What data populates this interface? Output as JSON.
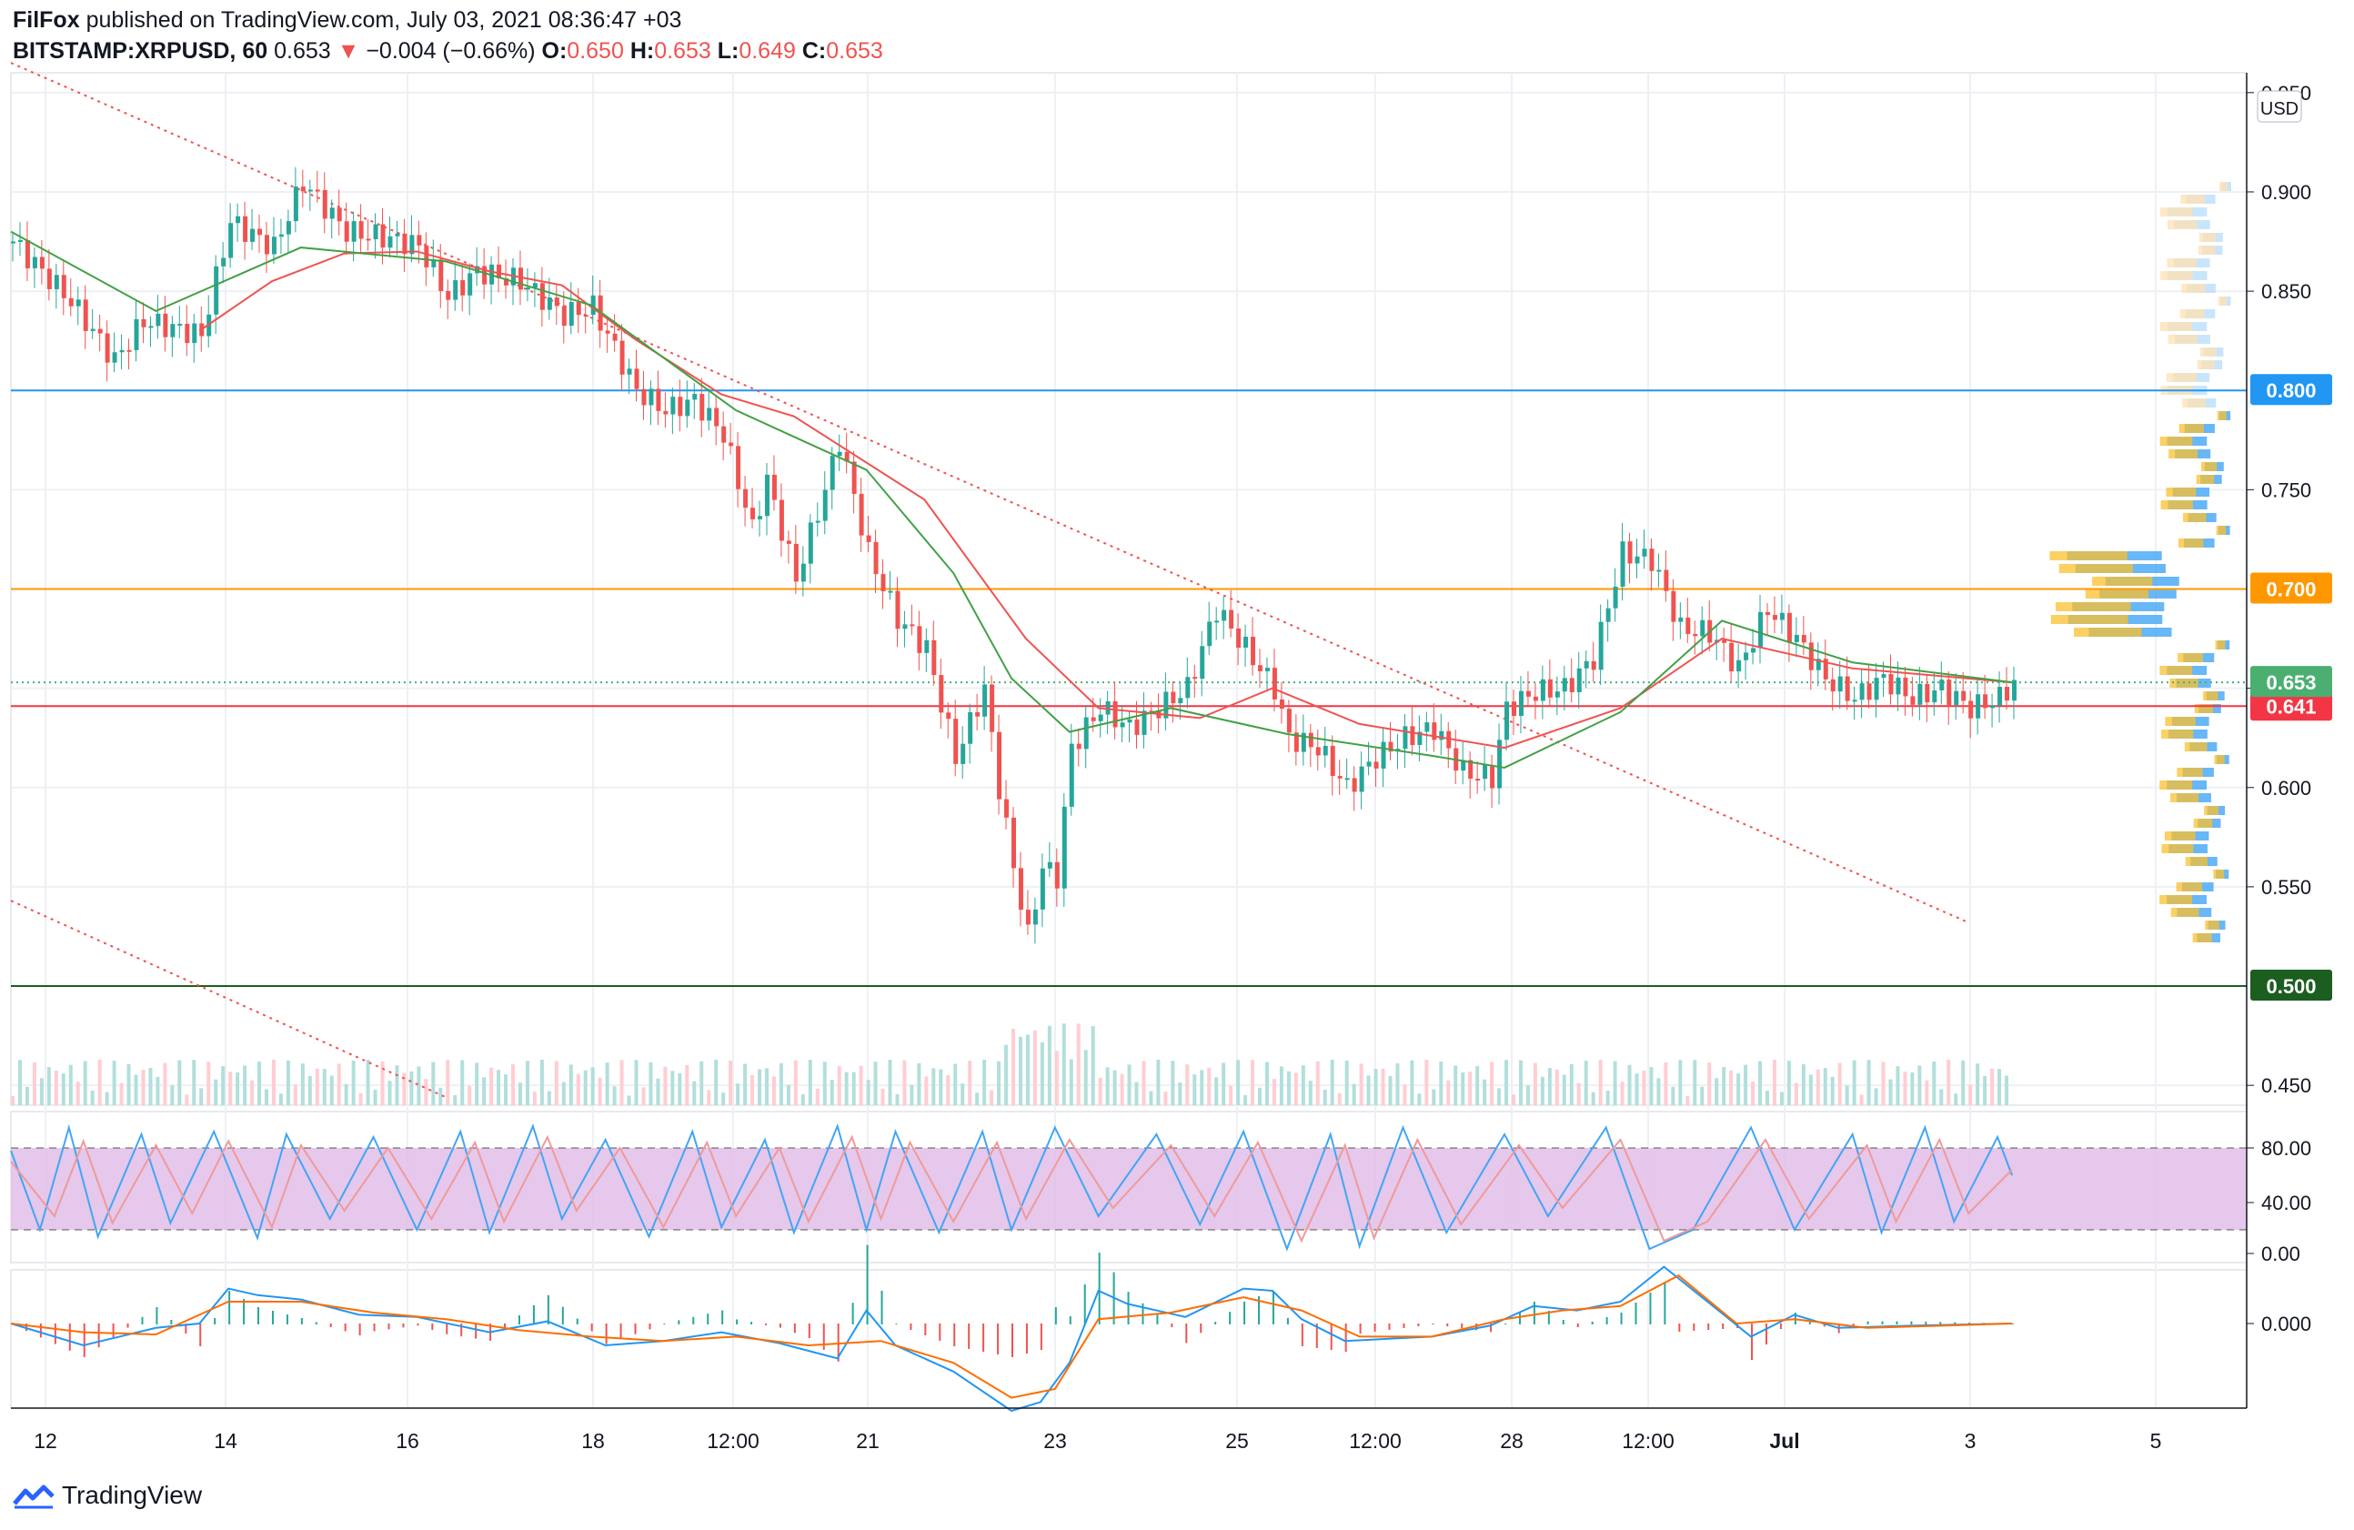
{
  "header": {
    "publisher": "FilFox",
    "published_text": "published on TradingView.com, July 03, 2021 08:36:47 +03",
    "symbol": "BITSTAMP:XRPUSD, 60",
    "last": "0.653",
    "change": "−0.004 (−0.66%)",
    "o_label": "O:",
    "o": "0.650",
    "h_label": "H:",
    "h": "0.653",
    "l_label": "L:",
    "l": "0.649",
    "c_label": "C:",
    "c": "0.653"
  },
  "footer": {
    "brand": "TradingView"
  },
  "chart_data": [
    {
      "type": "candlestick",
      "currency": "USD",
      "x_ticks": [
        "12",
        "14",
        "16",
        "18",
        "12:00",
        "21",
        "23",
        "25",
        "12:00",
        "28",
        "12:00",
        "Jul",
        "3",
        "5"
      ],
      "y_ticks": [
        "0.450",
        "0.550",
        "0.600",
        "0.650",
        "0.750",
        "0.850",
        "0.900",
        "0.950"
      ],
      "ylim": [
        0.44,
        0.96
      ],
      "grid": true,
      "price_close_path": [
        [
          0,
          0.875
        ],
        [
          8,
          0.845
        ],
        [
          14,
          0.815
        ],
        [
          18,
          0.835
        ],
        [
          26,
          0.828
        ],
        [
          30,
          0.885
        ],
        [
          36,
          0.872
        ],
        [
          40,
          0.905
        ],
        [
          46,
          0.88
        ],
        [
          50,
          0.878
        ],
        [
          56,
          0.873
        ],
        [
          60,
          0.847
        ],
        [
          64,
          0.86
        ],
        [
          70,
          0.855
        ],
        [
          76,
          0.838
        ],
        [
          80,
          0.842
        ],
        [
          86,
          0.8
        ],
        [
          90,
          0.79
        ],
        [
          94,
          0.795
        ],
        [
          98,
          0.778
        ],
        [
          102,
          0.73
        ],
        [
          104,
          0.755
        ],
        [
          108,
          0.705
        ],
        [
          112,
          0.75
        ],
        [
          114,
          0.775
        ],
        [
          118,
          0.718
        ],
        [
          122,
          0.685
        ],
        [
          126,
          0.67
        ],
        [
          130,
          0.615
        ],
        [
          134,
          0.65
        ],
        [
          136,
          0.6
        ],
        [
          138,
          0.56
        ],
        [
          140,
          0.525
        ],
        [
          142,
          0.56
        ],
        [
          144,
          0.555
        ],
        [
          146,
          0.62
        ],
        [
          150,
          0.64
        ],
        [
          154,
          0.63
        ],
        [
          158,
          0.64
        ],
        [
          162,
          0.65
        ],
        [
          166,
          0.69
        ],
        [
          170,
          0.67
        ],
        [
          174,
          0.65
        ],
        [
          176,
          0.625
        ],
        [
          180,
          0.62
        ],
        [
          184,
          0.6
        ],
        [
          188,
          0.615
        ],
        [
          192,
          0.625
        ],
        [
          196,
          0.63
        ],
        [
          200,
          0.608
        ],
        [
          204,
          0.605
        ],
        [
          206,
          0.64
        ],
        [
          210,
          0.648
        ],
        [
          214,
          0.65
        ],
        [
          218,
          0.665
        ],
        [
          222,
          0.718
        ],
        [
          226,
          0.715
        ],
        [
          230,
          0.68
        ],
        [
          234,
          0.678
        ],
        [
          238,
          0.66
        ],
        [
          242,
          0.69
        ],
        [
          246,
          0.675
        ],
        [
          250,
          0.655
        ],
        [
          254,
          0.645
        ],
        [
          258,
          0.655
        ],
        [
          262,
          0.645
        ],
        [
          266,
          0.65
        ],
        [
          270,
          0.64
        ],
        [
          274,
          0.645
        ],
        [
          276,
          0.653
        ]
      ],
      "ma_fast_path": [
        [
          0,
          0.88
        ],
        [
          20,
          0.84
        ],
        [
          40,
          0.872
        ],
        [
          60,
          0.865
        ],
        [
          80,
          0.843
        ],
        [
          100,
          0.79
        ],
        [
          118,
          0.76
        ],
        [
          130,
          0.708
        ],
        [
          138,
          0.655
        ],
        [
          146,
          0.628
        ],
        [
          160,
          0.64
        ],
        [
          176,
          0.627
        ],
        [
          196,
          0.616
        ],
        [
          206,
          0.61
        ],
        [
          222,
          0.638
        ],
        [
          236,
          0.684
        ],
        [
          254,
          0.663
        ],
        [
          276,
          0.653
        ]
      ],
      "ma_slow_path": [
        [
          26,
          0.83
        ],
        [
          36,
          0.855
        ],
        [
          46,
          0.869
        ],
        [
          56,
          0.87
        ],
        [
          66,
          0.86
        ],
        [
          76,
          0.853
        ],
        [
          86,
          0.826
        ],
        [
          98,
          0.798
        ],
        [
          108,
          0.787
        ],
        [
          126,
          0.745
        ],
        [
          140,
          0.675
        ],
        [
          150,
          0.64
        ],
        [
          164,
          0.635
        ],
        [
          174,
          0.65
        ],
        [
          186,
          0.632
        ],
        [
          206,
          0.62
        ],
        [
          222,
          0.64
        ],
        [
          236,
          0.675
        ],
        [
          254,
          0.66
        ],
        [
          276,
          0.653
        ]
      ],
      "trendlines": [
        [
          [
            0,
            0.965
          ],
          [
            270,
            0.532
          ]
        ],
        [
          [
            0,
            0.543
          ],
          [
            60,
            0.444
          ]
        ]
      ],
      "horizontal_levels": [
        {
          "value": 0.8,
          "label": "0.800",
          "color": "#2196f3"
        },
        {
          "value": 0.7,
          "label": "0.700",
          "color": "#ff9800"
        },
        {
          "value": 0.641,
          "label": "0.641",
          "color": "#f23645"
        },
        {
          "value": 0.5,
          "label": "0.500",
          "color": "#1b5e20"
        }
      ],
      "last_price": {
        "value": 0.653,
        "label": "0.653",
        "color": "#4caf72"
      }
    },
    {
      "type": "line",
      "name": "stochastic",
      "y_ticks": [
        "80.00",
        "40.00",
        "0.00"
      ],
      "band": [
        20,
        80
      ],
      "k_path": [
        [
          0,
          78
        ],
        [
          4,
          20
        ],
        [
          8,
          95
        ],
        [
          12,
          15
        ],
        [
          18,
          90
        ],
        [
          22,
          25
        ],
        [
          28,
          92
        ],
        [
          34,
          14
        ],
        [
          38,
          90
        ],
        [
          44,
          28
        ],
        [
          50,
          88
        ],
        [
          56,
          20
        ],
        [
          62,
          92
        ],
        [
          66,
          18
        ],
        [
          72,
          96
        ],
        [
          76,
          28
        ],
        [
          82,
          86
        ],
        [
          88,
          15
        ],
        [
          94,
          92
        ],
        [
          98,
          22
        ],
        [
          104,
          86
        ],
        [
          108,
          18
        ],
        [
          114,
          96
        ],
        [
          118,
          20
        ],
        [
          122,
          92
        ],
        [
          128,
          18
        ],
        [
          134,
          92
        ],
        [
          138,
          20
        ],
        [
          144,
          95
        ],
        [
          150,
          30
        ],
        [
          158,
          90
        ],
        [
          164,
          24
        ],
        [
          170,
          92
        ],
        [
          176,
          6
        ],
        [
          182,
          90
        ],
        [
          186,
          8
        ],
        [
          192,
          95
        ],
        [
          198,
          18
        ],
        [
          206,
          90
        ],
        [
          212,
          30
        ],
        [
          220,
          95
        ],
        [
          226,
          6
        ],
        [
          232,
          20
        ],
        [
          240,
          95
        ],
        [
          246,
          20
        ],
        [
          254,
          90
        ],
        [
          258,
          18
        ],
        [
          264,
          95
        ],
        [
          268,
          26
        ],
        [
          274,
          88
        ],
        [
          276,
          60
        ]
      ],
      "d_path": [
        [
          0,
          70
        ],
        [
          6,
          30
        ],
        [
          10,
          85
        ],
        [
          14,
          25
        ],
        [
          20,
          82
        ],
        [
          25,
          32
        ],
        [
          30,
          85
        ],
        [
          36,
          22
        ],
        [
          40,
          82
        ],
        [
          46,
          34
        ],
        [
          52,
          80
        ],
        [
          58,
          28
        ],
        [
          64,
          84
        ],
        [
          68,
          26
        ],
        [
          74,
          88
        ],
        [
          78,
          34
        ],
        [
          84,
          80
        ],
        [
          90,
          22
        ],
        [
          96,
          84
        ],
        [
          100,
          30
        ],
        [
          106,
          80
        ],
        [
          110,
          26
        ],
        [
          116,
          88
        ],
        [
          120,
          28
        ],
        [
          124,
          84
        ],
        [
          130,
          26
        ],
        [
          136,
          84
        ],
        [
          140,
          28
        ],
        [
          146,
          86
        ],
        [
          152,
          36
        ],
        [
          160,
          82
        ],
        [
          166,
          30
        ],
        [
          172,
          84
        ],
        [
          178,
          12
        ],
        [
          184,
          82
        ],
        [
          188,
          14
        ],
        [
          194,
          86
        ],
        [
          200,
          24
        ],
        [
          208,
          82
        ],
        [
          214,
          36
        ],
        [
          222,
          86
        ],
        [
          228,
          12
        ],
        [
          234,
          26
        ],
        [
          242,
          86
        ],
        [
          248,
          28
        ],
        [
          256,
          82
        ],
        [
          260,
          26
        ],
        [
          266,
          86
        ],
        [
          270,
          32
        ],
        [
          276,
          64
        ]
      ]
    },
    {
      "type": "line",
      "name": "macd",
      "y_ticks": [
        "0.000"
      ],
      "macd_path": [
        [
          0,
          0
        ],
        [
          10,
          -0.01
        ],
        [
          20,
          -0.002
        ],
        [
          26,
          0.0
        ],
        [
          30,
          0.016
        ],
        [
          34,
          0.013
        ],
        [
          40,
          0.011
        ],
        [
          48,
          0.004
        ],
        [
          56,
          0.003
        ],
        [
          66,
          -0.004
        ],
        [
          74,
          0.001
        ],
        [
          82,
          -0.01
        ],
        [
          90,
          -0.008
        ],
        [
          98,
          -0.004
        ],
        [
          106,
          -0.009
        ],
        [
          114,
          -0.016
        ],
        [
          118,
          0.006
        ],
        [
          122,
          -0.01
        ],
        [
          130,
          -0.022
        ],
        [
          138,
          -0.04
        ],
        [
          142,
          -0.036
        ],
        [
          146,
          -0.018
        ],
        [
          150,
          0.015
        ],
        [
          154,
          0.009
        ],
        [
          162,
          0.003
        ],
        [
          170,
          0.016
        ],
        [
          174,
          0.015
        ],
        [
          178,
          0.002
        ],
        [
          184,
          -0.008
        ],
        [
          196,
          -0.006
        ],
        [
          204,
          -0.001
        ],
        [
          210,
          0.008
        ],
        [
          216,
          0.006
        ],
        [
          222,
          0.01
        ],
        [
          228,
          0.026
        ],
        [
          234,
          0.01
        ],
        [
          240,
          -0.006
        ],
        [
          246,
          0.004
        ],
        [
          252,
          -0.002
        ],
        [
          262,
          -0.001
        ],
        [
          276,
          0.0
        ]
      ],
      "signal_path": [
        [
          0,
          0
        ],
        [
          10,
          -0.004
        ],
        [
          20,
          -0.005
        ],
        [
          30,
          0.01
        ],
        [
          40,
          0.01
        ],
        [
          50,
          0.005
        ],
        [
          60,
          0.002
        ],
        [
          70,
          -0.003
        ],
        [
          80,
          -0.006
        ],
        [
          90,
          -0.008
        ],
        [
          100,
          -0.006
        ],
        [
          110,
          -0.01
        ],
        [
          120,
          -0.008
        ],
        [
          130,
          -0.018
        ],
        [
          138,
          -0.034
        ],
        [
          144,
          -0.03
        ],
        [
          150,
          0.002
        ],
        [
          160,
          0.005
        ],
        [
          170,
          0.012
        ],
        [
          178,
          0.006
        ],
        [
          186,
          -0.006
        ],
        [
          196,
          -0.006
        ],
        [
          206,
          0.002
        ],
        [
          214,
          0.006
        ],
        [
          222,
          0.008
        ],
        [
          230,
          0.022
        ],
        [
          238,
          0.0
        ],
        [
          246,
          0.002
        ],
        [
          256,
          -0.002
        ],
        [
          276,
          0.0
        ]
      ]
    }
  ]
}
